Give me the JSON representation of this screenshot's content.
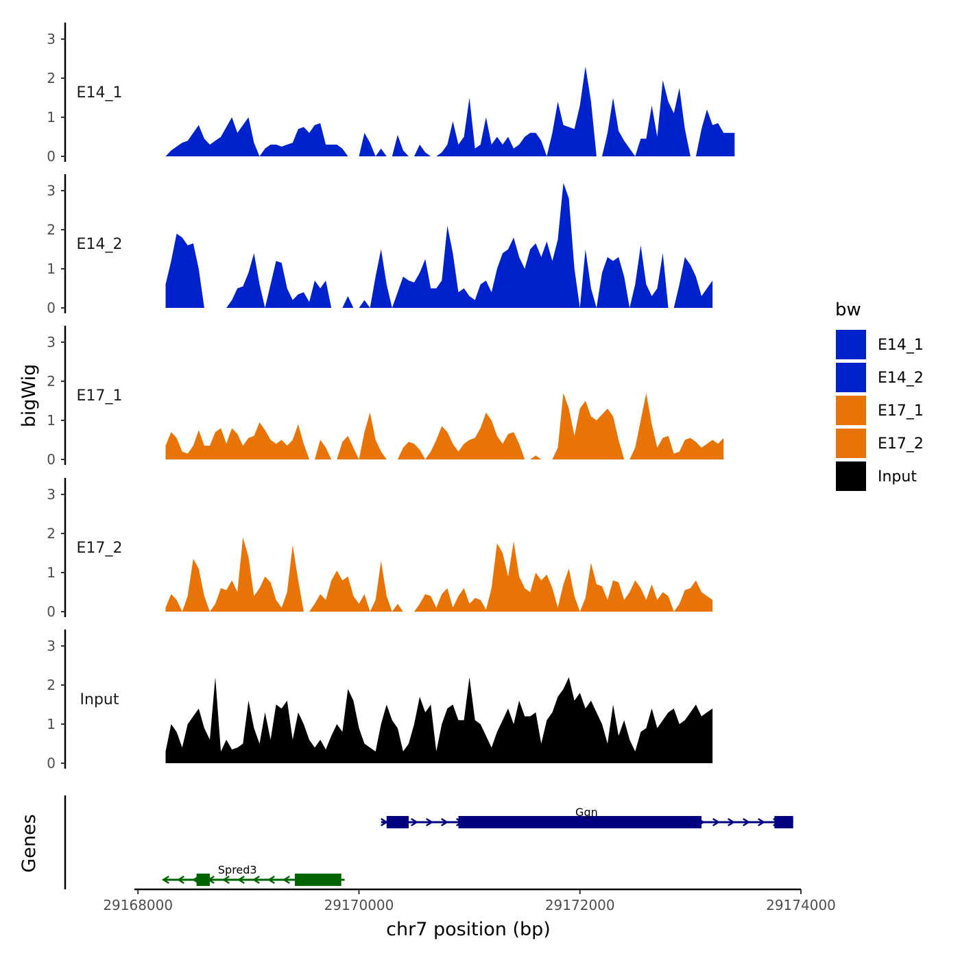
{
  "chart_data": {
    "type": "area",
    "y_axis_title": "bigWig",
    "genes_axis_title": "Genes",
    "x_axis_title": "chr7 position (bp)",
    "x_range": [
      29167980,
      29174000
    ],
    "x_ticks": [
      29168000,
      29170000,
      29172000,
      29174000
    ],
    "x_tick_labels": [
      "29168000",
      "29170000",
      "29172000",
      "29174000"
    ],
    "y_range": [
      0,
      3.4
    ],
    "y_ticks": [
      0,
      1,
      2,
      3
    ],
    "y_tick_labels": [
      "0",
      "1",
      "2",
      "3"
    ],
    "legend": {
      "title": "bw",
      "position": "right",
      "items": [
        {
          "label": "E14_1",
          "color": "#0022CC"
        },
        {
          "label": "E14_2",
          "color": "#0022CC"
        },
        {
          "label": "E17_1",
          "color": "#E87306"
        },
        {
          "label": "E17_2",
          "color": "#E87306"
        },
        {
          "label": "Input",
          "color": "#000000"
        }
      ]
    },
    "series": [
      {
        "name": "E14_1",
        "color": "#0022CC",
        "x_start": 29168250,
        "x_step": 50,
        "values": [
          0,
          0.15,
          0.25,
          0.35,
          0.4,
          0.6,
          0.8,
          0.45,
          0.3,
          0.4,
          0.5,
          0.75,
          1.0,
          0.6,
          0.8,
          1.0,
          0.35,
          0,
          0.2,
          0.3,
          0.3,
          0.25,
          0.3,
          0.35,
          0.7,
          0.75,
          0.6,
          0.8,
          0.85,
          0.3,
          0.3,
          0.3,
          0.2,
          0,
          0,
          0,
          0.6,
          0.35,
          0,
          0.2,
          0,
          0,
          0.55,
          0.15,
          0,
          0,
          0.3,
          0.1,
          0,
          0,
          0.1,
          0.3,
          0.9,
          0.3,
          0.5,
          1.5,
          0.2,
          0.3,
          1.0,
          0.3,
          0.5,
          0.3,
          0.5,
          0.2,
          0.3,
          0.5,
          0.6,
          0.6,
          0.4,
          0,
          0.6,
          1.4,
          0.8,
          0.75,
          0.7,
          1.3,
          2.3,
          1.4,
          0,
          0,
          0.6,
          1.5,
          0.65,
          0.4,
          0.2,
          0,
          0.45,
          0.45,
          1.3,
          0.5,
          1.95,
          1.4,
          1.1,
          1.75,
          0.7,
          0,
          0,
          0.7,
          1.2,
          0.8,
          0.85,
          0.6,
          0.6,
          0.6
        ]
      },
      {
        "name": "E14_2",
        "color": "#0022CC",
        "x_start": 29168250,
        "x_step": 50,
        "values": [
          0.6,
          1.2,
          1.9,
          1.8,
          1.6,
          1.65,
          1.0,
          0,
          0,
          0,
          0,
          0,
          0.2,
          0.5,
          0.55,
          0.9,
          1.4,
          0.6,
          0,
          0.6,
          1.2,
          1.15,
          0.5,
          0.2,
          0.35,
          0.4,
          0.15,
          0.7,
          0.5,
          0.7,
          0,
          0,
          0,
          0.3,
          0,
          0,
          0.2,
          0,
          0.8,
          1.5,
          0.6,
          0,
          0.4,
          0.8,
          0.7,
          0.65,
          0.9,
          1.25,
          0.5,
          0.5,
          0.7,
          2.1,
          1.4,
          0.4,
          0.5,
          0.3,
          0.2,
          0.6,
          0.7,
          0.4,
          1.0,
          1.4,
          1.5,
          1.8,
          1.3,
          1.0,
          1.5,
          1.65,
          1.3,
          1.7,
          1.2,
          1.75,
          3.2,
          2.8,
          1.0,
          0,
          1.5,
          0.5,
          0,
          0.9,
          1.3,
          1.2,
          1.3,
          0.8,
          0,
          0.6,
          1.6,
          0.6,
          0.3,
          0.5,
          1.4,
          0,
          0,
          0.6,
          1.3,
          1.1,
          0.8,
          0.3,
          0.5,
          0.7
        ]
      },
      {
        "name": "E17_1",
        "color": "#E87306",
        "x_start": 29168250,
        "x_step": 50,
        "values": [
          0.35,
          0.7,
          0.55,
          0.2,
          0.15,
          0.35,
          0.75,
          0.35,
          0.35,
          0.7,
          0.8,
          0.4,
          0.8,
          0.65,
          0.35,
          0.55,
          0.6,
          0.95,
          0.75,
          0.5,
          0.4,
          0.5,
          0.35,
          0.5,
          0.9,
          0.4,
          0,
          0,
          0.5,
          0.3,
          0,
          0,
          0.45,
          0.6,
          0.3,
          0,
          0.7,
          1.2,
          0.5,
          0.2,
          0,
          0,
          0,
          0.3,
          0.45,
          0.4,
          0.25,
          0,
          0.2,
          0.5,
          0.85,
          0.7,
          0.4,
          0.2,
          0.4,
          0.5,
          0.55,
          0.8,
          1.2,
          1.0,
          0.6,
          0.4,
          0.65,
          0.7,
          0.4,
          0,
          0,
          0.1,
          0,
          0,
          0,
          0.3,
          1.7,
          1.3,
          0.6,
          1.3,
          1.5,
          1.1,
          1.0,
          1.15,
          1.3,
          1.1,
          0.5,
          0,
          0,
          0.3,
          1.0,
          1.7,
          0.9,
          0.3,
          0.55,
          0.6,
          0.15,
          0.2,
          0.5,
          0.55,
          0.45,
          0.3,
          0.4,
          0.5,
          0.4,
          0.55
        ]
      },
      {
        "name": "E17_2",
        "color": "#E87306",
        "x_start": 29168250,
        "x_step": 50,
        "values": [
          0.1,
          0.45,
          0.3,
          0,
          0.4,
          1.35,
          1.1,
          0.4,
          0,
          0.2,
          0.6,
          0.55,
          0.8,
          0.5,
          1.9,
          1.4,
          0.4,
          0.6,
          0.9,
          0.75,
          0.3,
          0.1,
          0.5,
          1.7,
          0.8,
          0,
          0,
          0.2,
          0.45,
          0.3,
          0.8,
          1.05,
          0.8,
          0.9,
          0.4,
          0.2,
          0.45,
          0,
          0.3,
          1.3,
          0.4,
          0,
          0.2,
          0,
          0,
          0,
          0.2,
          0.45,
          0.4,
          0.1,
          0.45,
          0.6,
          0.1,
          0.4,
          0.6,
          0.2,
          0.35,
          0.3,
          0.05,
          0.6,
          1.75,
          1.5,
          0.9,
          1.8,
          0.9,
          0.6,
          0.5,
          1.0,
          0.8,
          0.95,
          0.6,
          0.1,
          0.7,
          1.1,
          0.4,
          0,
          0.35,
          1.25,
          0.7,
          0.65,
          0.3,
          0.8,
          0.75,
          0.3,
          0.5,
          0.8,
          0.6,
          0.3,
          0.7,
          0.3,
          0.5,
          0.4,
          0,
          0.2,
          0.55,
          0.6,
          0.8,
          0.5,
          0.4,
          0.3
        ]
      },
      {
        "name": "Input",
        "color": "#000000",
        "x_start": 29168250,
        "x_step": 50,
        "values": [
          0.3,
          1.0,
          0.8,
          0.4,
          1.0,
          1.2,
          1.4,
          0.9,
          0.6,
          2.2,
          0.3,
          0.6,
          0.35,
          0.4,
          0.5,
          1.6,
          0.9,
          0.5,
          1.3,
          0.6,
          1.5,
          1.4,
          1.6,
          0.6,
          1.3,
          1.0,
          0.6,
          0.4,
          0.6,
          0.35,
          0.7,
          1.0,
          0.8,
          1.9,
          1.6,
          0.9,
          0.5,
          0.4,
          0.3,
          1.0,
          1.5,
          1.1,
          0.9,
          0.3,
          0.5,
          1.0,
          1.7,
          1.3,
          1.5,
          0.3,
          1.0,
          1.4,
          1.5,
          1.1,
          1.1,
          2.2,
          1.1,
          1.0,
          0.7,
          0.4,
          0.8,
          1.1,
          1.4,
          1.0,
          1.6,
          1.2,
          1.2,
          1.3,
          0.5,
          1.1,
          1.3,
          1.7,
          1.9,
          2.2,
          1.6,
          1.8,
          1.4,
          1.6,
          1.3,
          1.0,
          0.5,
          1.5,
          0.7,
          1.1,
          0.6,
          0.3,
          0.8,
          0.9,
          1.4,
          0.9,
          1.1,
          1.3,
          1.4,
          1.0,
          1.1,
          1.3,
          1.5,
          1.2,
          1.3,
          1.4
        ]
      }
    ],
    "genes": [
      {
        "name": "Ggn",
        "strand": "+",
        "color": "#000080",
        "start": 29170200,
        "end": 29173930,
        "exons": [
          [
            29170250,
            29170450
          ],
          [
            29170900,
            29172800
          ],
          [
            29172700,
            29173100
          ],
          [
            29173760,
            29173930
          ]
        ]
      },
      {
        "name": "Spred3",
        "strand": "-",
        "color": "#006400",
        "start": 29168230,
        "end": 29169870,
        "exons": [
          [
            29168530,
            29168650
          ],
          [
            29169420,
            29169840
          ]
        ]
      }
    ]
  }
}
